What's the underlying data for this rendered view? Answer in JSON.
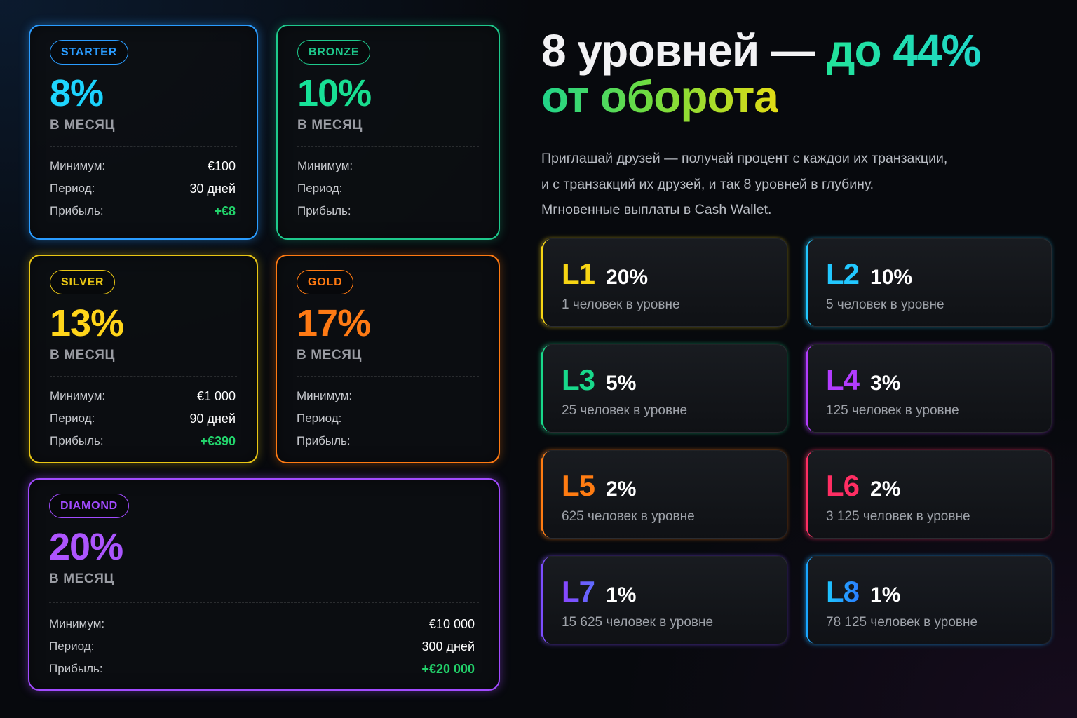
{
  "plans": [
    {
      "badge": "STARTER",
      "percent": "8%",
      "period_label": "В МЕСЯЦ",
      "rows": [
        {
          "label": "Минимум:",
          "value": "€100"
        },
        {
          "label": "Период:",
          "value": "30 дней"
        },
        {
          "label": "Прибыль:",
          "value": "+€8"
        }
      ],
      "color": "#2a9cff"
    },
    {
      "badge": "BRONZE",
      "percent": "10%",
      "period_label": "В МЕСЯЦ",
      "rows": [
        {
          "label": "Минимум:",
          "value": ""
        },
        {
          "label": "Период:",
          "value": ""
        },
        {
          "label": "Прибыль:",
          "value": ""
        }
      ],
      "color": "#1ec98c"
    },
    {
      "badge": "SILVER",
      "percent": "13%",
      "period_label": "В МЕСЯЦ",
      "rows": [
        {
          "label": "Минимум:",
          "value": "€1 000"
        },
        {
          "label": "Период:",
          "value": "90 дней"
        },
        {
          "label": "Прибыль:",
          "value": "+€390"
        }
      ],
      "color": "#e9c614"
    },
    {
      "badge": "GOLD",
      "percent": "17%",
      "period_label": "В МЕСЯЦ",
      "rows": [
        {
          "label": "Минимум:",
          "value": ""
        },
        {
          "label": "Период:",
          "value": ""
        },
        {
          "label": "Прибыль:",
          "value": ""
        }
      ],
      "color": "#ff7a12"
    },
    {
      "badge": "DIAMOND",
      "percent": "20%",
      "period_label": "В МЕСЯЦ",
      "rows": [
        {
          "label": "Минимум:",
          "value": "€10 000"
        },
        {
          "label": "Период:",
          "value": "300 дней"
        },
        {
          "label": "Прибыль:",
          "value": "+€20 000"
        }
      ],
      "color": "#a24bff"
    }
  ],
  "headline": {
    "part1": "8 уровней — ",
    "part2": "до 44%",
    "part3": "от оборота"
  },
  "lead": {
    "line1": "Приглашай друзей — получай процент с каждои их транзакции,",
    "line2": "и с транзакций их друзей, и так 8 уровней в глубину.",
    "line3": "Мгновенные выплаты в Cash Wallet."
  },
  "levels": [
    {
      "label": "L1",
      "percent": "20%",
      "people": "1 человек в уровне",
      "color": "#f7d514"
    },
    {
      "label": "L2",
      "percent": "10%",
      "people": "5 человек в уровне",
      "color": "#22c8ff"
    },
    {
      "label": "L3",
      "percent": "5%",
      "people": "25 человек в уровне",
      "color": "#18d98b"
    },
    {
      "label": "L4",
      "percent": "3%",
      "people": "125 человек в уровне",
      "color": "#b33cff"
    },
    {
      "label": "L5",
      "percent": "2%",
      "people": "625 человек в уровне",
      "color": "#ff7c12"
    },
    {
      "label": "L6",
      "percent": "2%",
      "people": "3 125 человек в уровне",
      "color": "#ff2e63"
    },
    {
      "label": "L7",
      "percent": "1%",
      "people": "15 625 человек в уровне",
      "color": "#7c4dff"
    },
    {
      "label": "L8",
      "percent": "1%",
      "people": "78 125 человек в уровне",
      "color": "#1aa6ff"
    }
  ],
  "colors": {
    "profit": "#22d36b",
    "background": "#07090d"
  }
}
